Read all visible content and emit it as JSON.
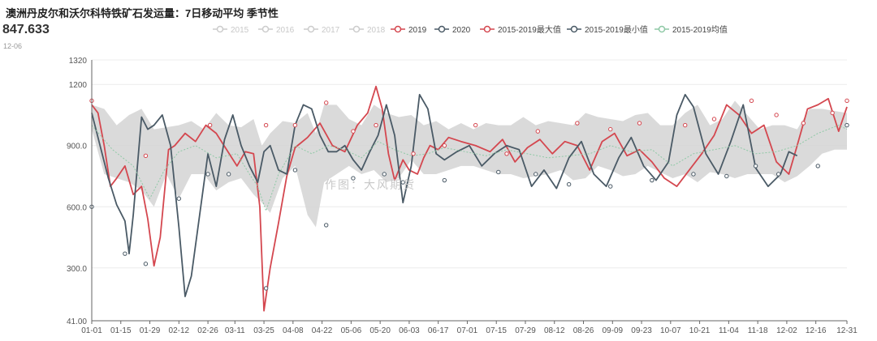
{
  "header": {
    "title": "澳洲丹皮尔和沃尔科特铁矿石发运量：7日移动平均 季节性",
    "latest_value": "847.633",
    "latest_date": "12-06"
  },
  "watermark": "作图：大风期货",
  "colors": {
    "y2019": "#d4474f",
    "y2020": "#4a5a66",
    "max": "#d4474f",
    "min": "#4a5a66",
    "avg": "#8fc9a6",
    "band": "#d6d6d6",
    "inactive": "#cccccc"
  },
  "chart_data": {
    "type": "line",
    "title": "澳洲丹皮尔和沃尔科特铁矿石发运量：7日移动平均 季节性",
    "ylim": [
      41,
      1320
    ],
    "yticks": [
      "41.00",
      "300.0",
      "600.0",
      "900.0",
      "1200",
      "1320"
    ],
    "ytick_values": [
      41,
      300,
      600,
      900,
      1200,
      1320
    ],
    "xticks": [
      "01-01",
      "01-15",
      "01-29",
      "02-12",
      "02-26",
      "03-11",
      "03-25",
      "04-08",
      "04-22",
      "05-06",
      "05-20",
      "06-03",
      "06-17",
      "07-01",
      "07-15",
      "07-29",
      "08-12",
      "08-26",
      "09-09",
      "09-23",
      "10-07",
      "10-21",
      "11-04",
      "11-18",
      "12-02",
      "12-16",
      "12-31"
    ],
    "xtick_days": [
      0,
      14,
      28,
      42,
      56,
      69,
      83,
      97,
      111,
      125,
      139,
      153,
      167,
      181,
      195,
      209,
      223,
      237,
      251,
      265,
      279,
      293,
      307,
      321,
      335,
      349,
      364
    ],
    "legend": [
      {
        "name": "2015",
        "active": false
      },
      {
        "name": "2016",
        "active": false
      },
      {
        "name": "2017",
        "active": false
      },
      {
        "name": "2018",
        "active": false
      },
      {
        "name": "2019",
        "active": true
      },
      {
        "name": "2020",
        "active": true
      },
      {
        "name": "2015-2019最大值",
        "active": true
      },
      {
        "name": "2015-2019最小值",
        "active": true
      },
      {
        "name": "2015-2019均值",
        "active": true
      }
    ],
    "series": [
      {
        "name": "2019",
        "key": "y2019",
        "x": [
          0,
          3,
          6,
          9,
          12,
          16,
          20,
          24,
          27,
          30,
          33,
          37,
          40,
          45,
          50,
          55,
          60,
          65,
          70,
          74,
          78,
          81,
          83,
          86,
          90,
          94,
          98,
          104,
          110,
          116,
          122,
          128,
          133,
          137,
          140,
          143,
          146,
          150,
          153,
          157,
          160,
          163,
          167,
          172,
          178,
          185,
          192,
          198,
          204,
          210,
          216,
          222,
          228,
          234,
          240,
          246,
          252,
          258,
          264,
          270,
          276,
          282,
          288,
          294,
          300,
          306,
          312,
          318,
          324,
          330,
          336,
          340,
          345,
          350,
          355,
          360,
          364
        ],
        "y": [
          1100,
          1060,
          900,
          700,
          740,
          800,
          660,
          700,
          540,
          310,
          450,
          880,
          900,
          960,
          920,
          1000,
          960,
          880,
          800,
          870,
          860,
          600,
          90,
          300,
          520,
          750,
          890,
          940,
          1010,
          900,
          870,
          1000,
          1060,
          1190,
          1080,
          860,
          730,
          830,
          780,
          760,
          840,
          900,
          880,
          940,
          920,
          900,
          870,
          930,
          820,
          890,
          930,
          860,
          920,
          900,
          780,
          920,
          960,
          850,
          880,
          820,
          740,
          700,
          780,
          860,
          950,
          1100,
          1050,
          960,
          1000,
          820,
          760,
          900,
          1080,
          1100,
          1130,
          970,
          1090
        ]
      },
      {
        "name": "2020",
        "key": "y2020",
        "x": [
          0,
          4,
          8,
          12,
          16,
          18,
          20,
          24,
          27,
          30,
          34,
          38,
          42,
          45,
          48,
          52,
          56,
          60,
          64,
          68,
          72,
          76,
          80,
          83,
          86,
          90,
          94,
          98,
          102,
          106,
          110,
          114,
          118,
          122,
          126,
          130,
          134,
          138,
          142,
          146,
          150,
          154,
          158,
          162,
          166,
          170,
          176,
          182,
          188,
          194,
          200,
          206,
          212,
          218,
          224,
          230,
          236,
          242,
          248,
          254,
          260,
          266,
          272,
          278,
          282,
          286,
          290,
          296,
          302,
          308,
          314,
          320,
          326,
          332,
          336,
          340
        ],
        "y": [
          1060,
          900,
          740,
          610,
          530,
          370,
          560,
          1040,
          980,
          1000,
          1050,
          900,
          500,
          160,
          260,
          560,
          860,
          700,
          930,
          1050,
          900,
          800,
          720,
          870,
          900,
          780,
          760,
          1000,
          1100,
          1080,
          950,
          870,
          870,
          900,
          830,
          780,
          870,
          950,
          1100,
          950,
          620,
          800,
          1150,
          1080,
          860,
          830,
          870,
          900,
          800,
          860,
          900,
          880,
          700,
          780,
          690,
          840,
          920,
          760,
          700,
          840,
          940,
          800,
          730,
          820,
          1050,
          1150,
          1090,
          860,
          760,
          920,
          1100,
          790,
          700,
          760,
          870,
          850
        ]
      },
      {
        "name": "2015-2019均值",
        "key": "avg",
        "dashed": true,
        "x": [
          0,
          10,
          20,
          28,
          35,
          42,
          50,
          60,
          70,
          76,
          80,
          84,
          90,
          98,
          106,
          114,
          122,
          130,
          138,
          146,
          154,
          162,
          170,
          180,
          190,
          200,
          210,
          220,
          230,
          240,
          250,
          260,
          270,
          280,
          290,
          300,
          310,
          320,
          330,
          340,
          350,
          360,
          364
        ],
        "y": [
          1000,
          880,
          800,
          640,
          780,
          870,
          900,
          840,
          860,
          760,
          700,
          580,
          760,
          900,
          860,
          900,
          880,
          840,
          920,
          880,
          850,
          860,
          890,
          870,
          850,
          880,
          860,
          840,
          850,
          860,
          900,
          870,
          880,
          800,
          860,
          880,
          900,
          860,
          870,
          900,
          960,
          1000,
          980
        ]
      }
    ],
    "band": {
      "name_upper": "2015-2019最大值",
      "name_lower": "2015-2019最小值",
      "x": [
        0,
        6,
        12,
        18,
        24,
        30,
        36,
        42,
        48,
        54,
        60,
        66,
        72,
        78,
        82,
        86,
        92,
        98,
        104,
        108,
        112,
        118,
        124,
        130,
        136,
        142,
        148,
        154,
        160,
        166,
        172,
        178,
        184,
        190,
        196,
        202,
        208,
        214,
        220,
        226,
        232,
        238,
        244,
        250,
        256,
        262,
        268,
        274,
        280,
        286,
        292,
        298,
        304,
        310,
        316,
        322,
        328,
        334,
        340,
        346,
        352,
        358,
        364
      ],
      "upper": [
        1100,
        1080,
        1000,
        1050,
        1080,
        980,
        990,
        1000,
        1020,
        980,
        1060,
        1000,
        990,
        1030,
        900,
        960,
        1020,
        1010,
        1060,
        960,
        1100,
        1100,
        1030,
        1000,
        1100,
        1060,
        1040,
        1050,
        1000,
        1020,
        980,
        1010,
        980,
        1010,
        1000,
        1000,
        1040,
        1000,
        1020,
        1010,
        1000,
        1060,
        1040,
        1030,
        1020,
        1050,
        1060,
        1000,
        1000,
        1060,
        1100,
        1000,
        1030,
        1120,
        1050,
        980,
        1000,
        1000,
        980,
        1080,
        1080,
        1070,
        1060
      ],
      "lower": [
        980,
        760,
        740,
        720,
        680,
        600,
        760,
        640,
        760,
        760,
        680,
        720,
        740,
        660,
        620,
        570,
        740,
        800,
        560,
        500,
        720,
        760,
        800,
        760,
        780,
        720,
        740,
        830,
        760,
        760,
        780,
        800,
        800,
        780,
        760,
        760,
        740,
        750,
        760,
        780,
        730,
        740,
        800,
        780,
        750,
        760,
        800,
        770,
        740,
        760,
        720,
        770,
        760,
        740,
        760,
        760,
        760,
        720,
        750,
        800,
        860,
        880,
        880
      ]
    },
    "markers": {
      "max": [
        [
          0,
          1120
        ],
        [
          26,
          850
        ],
        [
          57,
          1000
        ],
        [
          84,
          1000
        ],
        [
          98,
          1000
        ],
        [
          113,
          1110
        ],
        [
          126,
          970
        ],
        [
          137,
          1000
        ],
        [
          155,
          860
        ],
        [
          170,
          900
        ],
        [
          185,
          1000
        ],
        [
          200,
          860
        ],
        [
          215,
          970
        ],
        [
          234,
          1010
        ],
        [
          250,
          980
        ],
        [
          264,
          1010
        ],
        [
          286,
          1000
        ],
        [
          300,
          1030
        ],
        [
          318,
          1120
        ],
        [
          330,
          1050
        ],
        [
          343,
          1010
        ],
        [
          357,
          1060
        ],
        [
          364,
          1120
        ]
      ],
      "min": [
        [
          0,
          600
        ],
        [
          16,
          370
        ],
        [
          26,
          320
        ],
        [
          42,
          640
        ],
        [
          56,
          760
        ],
        [
          66,
          760
        ],
        [
          84,
          200
        ],
        [
          98,
          780
        ],
        [
          113,
          510
        ],
        [
          126,
          740
        ],
        [
          141,
          760
        ],
        [
          150,
          720
        ],
        [
          170,
          730
        ],
        [
          196,
          770
        ],
        [
          214,
          760
        ],
        [
          230,
          710
        ],
        [
          250,
          700
        ],
        [
          270,
          730
        ],
        [
          290,
          760
        ],
        [
          306,
          750
        ],
        [
          320,
          800
        ],
        [
          331,
          760
        ],
        [
          350,
          800
        ],
        [
          364,
          1000
        ]
      ]
    }
  }
}
